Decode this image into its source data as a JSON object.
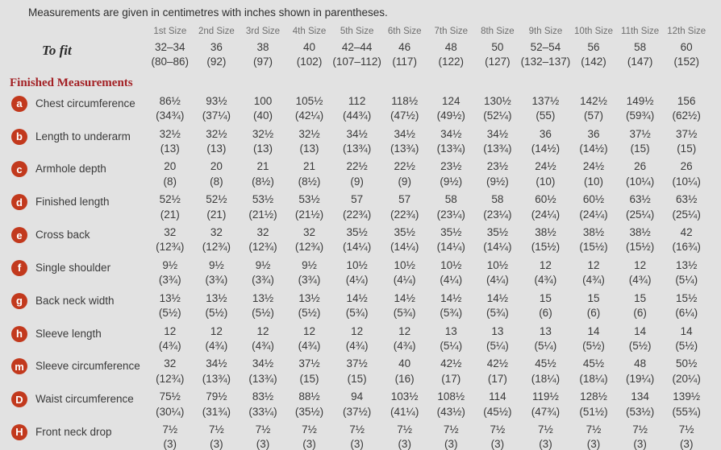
{
  "note": "Measurements are given in centimetres with inches shown in parentheses.",
  "colors": {
    "background": "#e2e2e2",
    "badge_red": "#c2391d",
    "heading_red": "#a32125"
  },
  "table": {
    "size_headers": [
      "1st Size",
      "2nd Size",
      "3rd Size",
      "4th Size",
      "5th Size",
      "6th Size",
      "7th Size",
      "8th Size",
      "9th Size",
      "10th Size",
      "11th Size",
      "12th Size"
    ],
    "to_fit": {
      "label": "To fit",
      "cm": [
        "32–34",
        "36",
        "38",
        "40",
        "42–44",
        "46",
        "48",
        "50",
        "52–54",
        "56",
        "58",
        "60"
      ],
      "inches": [
        "(80–86)",
        "(92)",
        "(97)",
        "(102)",
        "(107–112)",
        "(117)",
        "(122)",
        "(127)",
        "(132–137)",
        "(142)",
        "(147)",
        "(152)"
      ]
    },
    "section_heading": "Finished Measurements",
    "rows": [
      {
        "badge": "a",
        "label": "Chest circumference",
        "cm": [
          "86½",
          "93½",
          "100",
          "105½",
          "112",
          "118½",
          "124",
          "130½",
          "137½",
          "142½",
          "149½",
          "156"
        ],
        "inches": [
          "(34¾)",
          "(37¼)",
          "(40)",
          "(42¼)",
          "(44¾)",
          "(47½)",
          "(49½)",
          "(52¼)",
          "(55)",
          "(57)",
          "(59¾)",
          "(62½)"
        ]
      },
      {
        "badge": "b",
        "label": "Length to underarm",
        "cm": [
          "32½",
          "32½",
          "32½",
          "32½",
          "34½",
          "34½",
          "34½",
          "34½",
          "36",
          "36",
          "37½",
          "37½"
        ],
        "inches": [
          "(13)",
          "(13)",
          "(13)",
          "(13)",
          "(13¾)",
          "(13¾)",
          "(13¾)",
          "(13¾)",
          "(14½)",
          "(14½)",
          "(15)",
          "(15)"
        ]
      },
      {
        "badge": "c",
        "label": "Armhole depth",
        "cm": [
          "20",
          "20",
          "21",
          "21",
          "22½",
          "22½",
          "23½",
          "23½",
          "24½",
          "24½",
          "26",
          "26"
        ],
        "inches": [
          "(8)",
          "(8)",
          "(8½)",
          "(8½)",
          "(9)",
          "(9)",
          "(9½)",
          "(9½)",
          "(10)",
          "(10)",
          "(10¼)",
          "(10¼)"
        ]
      },
      {
        "badge": "d",
        "label": "Finished length",
        "cm": [
          "52½",
          "52½",
          "53½",
          "53½",
          "57",
          "57",
          "58",
          "58",
          "60½",
          "60½",
          "63½",
          "63½"
        ],
        "inches": [
          "(21)",
          "(21)",
          "(21½)",
          "(21½)",
          "(22¾)",
          "(22¾)",
          "(23¼)",
          "(23¼)",
          "(24¼)",
          "(24¼)",
          "(25¼)",
          "(25¼)"
        ]
      },
      {
        "badge": "e",
        "label": "Cross back",
        "cm": [
          "32",
          "32",
          "32",
          "32",
          "35½",
          "35½",
          "35½",
          "35½",
          "38½",
          "38½",
          "38½",
          "42"
        ],
        "inches": [
          "(12¾)",
          "(12¾)",
          "(12¾)",
          "(12¾)",
          "(14¼)",
          "(14¼)",
          "(14¼)",
          "(14¼)",
          "(15½)",
          "(15½)",
          "(15½)",
          "(16¾)"
        ]
      },
      {
        "badge": "f",
        "label": "Single shoulder",
        "cm": [
          "9½",
          "9½",
          "9½",
          "9½",
          "10½",
          "10½",
          "10½",
          "10½",
          "12",
          "12",
          "12",
          "13½"
        ],
        "inches": [
          "(3¾)",
          "(3¾)",
          "(3¾)",
          "(3¾)",
          "(4¼)",
          "(4¼)",
          "(4¼)",
          "(4¼)",
          "(4¾)",
          "(4¾)",
          "(4¾)",
          "(5¼)"
        ]
      },
      {
        "badge": "g",
        "label": "Back neck width",
        "cm": [
          "13½",
          "13½",
          "13½",
          "13½",
          "14½",
          "14½",
          "14½",
          "14½",
          "15",
          "15",
          "15",
          "15½"
        ],
        "inches": [
          "(5½)",
          "(5½)",
          "(5½)",
          "(5½)",
          "(5¾)",
          "(5¾)",
          "(5¾)",
          "(5¾)",
          "(6)",
          "(6)",
          "(6)",
          "(6¼)"
        ]
      },
      {
        "badge": "h",
        "label": "Sleeve length",
        "cm": [
          "12",
          "12",
          "12",
          "12",
          "12",
          "12",
          "13",
          "13",
          "13",
          "14",
          "14",
          "14"
        ],
        "inches": [
          "(4¾)",
          "(4¾)",
          "(4¾)",
          "(4¾)",
          "(4¾)",
          "(4¾)",
          "(5¼)",
          "(5¼)",
          "(5¼)",
          "(5½)",
          "(5½)",
          "(5½)"
        ]
      },
      {
        "badge": "m",
        "label": "Sleeve circumference",
        "cm": [
          "32",
          "34½",
          "34½",
          "37½",
          "37½",
          "40",
          "42½",
          "42½",
          "45½",
          "45½",
          "48",
          "50½"
        ],
        "inches": [
          "(12¾)",
          "(13¾)",
          "(13¾)",
          "(15)",
          "(15)",
          "(16)",
          "(17)",
          "(17)",
          "(18¼)",
          "(18¼)",
          "(19¼)",
          "(20¼)"
        ]
      },
      {
        "badge": "D",
        "label": "Waist circumference",
        "cm": [
          "75½",
          "79½",
          "83½",
          "88½",
          "94",
          "103½",
          "108½",
          "114",
          "119½",
          "128½",
          "134",
          "139½"
        ],
        "inches": [
          "(30¼)",
          "(31¾)",
          "(33¼)",
          "(35½)",
          "(37½)",
          "(41¼)",
          "(43½)",
          "(45½)",
          "(47¾)",
          "(51½)",
          "(53½)",
          "(55¾)"
        ]
      },
      {
        "badge": "H",
        "label": "Front neck drop",
        "cm": [
          "7½",
          "7½",
          "7½",
          "7½",
          "7½",
          "7½",
          "7½",
          "7½",
          "7½",
          "7½",
          "7½",
          "7½"
        ],
        "inches": [
          "(3)",
          "(3)",
          "(3)",
          "(3)",
          "(3)",
          "(3)",
          "(3)",
          "(3)",
          "(3)",
          "(3)",
          "(3)",
          "(3)"
        ]
      }
    ]
  }
}
